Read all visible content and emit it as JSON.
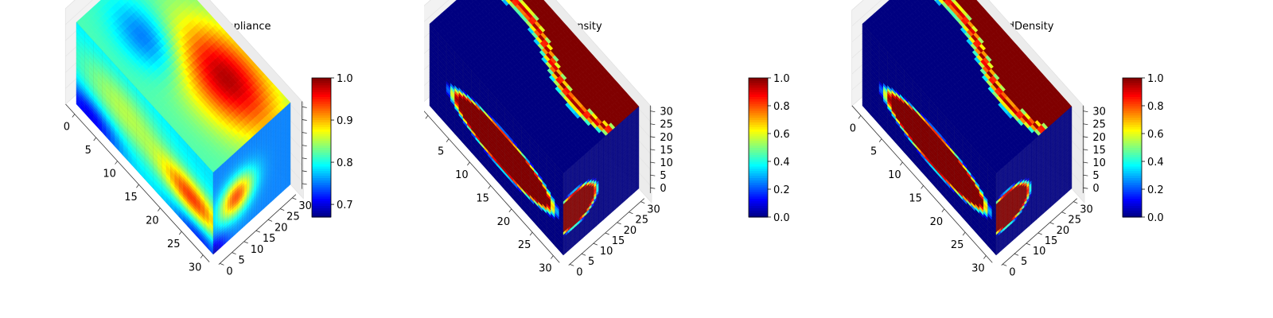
{
  "chart_data": [
    {
      "type": "heatmap",
      "title": "InitialCompliance",
      "xlim": [
        0,
        32
      ],
      "ylim": [
        0,
        32
      ],
      "zlim": [
        0,
        32
      ],
      "x_ticks": [
        "0",
        "5",
        "10",
        "15",
        "20",
        "25",
        "30"
      ],
      "y_ticks": [
        "0",
        "5",
        "10",
        "15",
        "20",
        "25",
        "30"
      ],
      "z_ticks": [],
      "colormap": "jet",
      "colorbar_range": [
        0.67,
        1.0
      ],
      "colorbar_ticks": [
        "0.7",
        "0.8",
        "0.9",
        "1.0"
      ],
      "colorbar_tick_values": [
        0.7,
        0.8,
        0.9,
        1.0
      ]
    },
    {
      "type": "heatmap",
      "title": "TargetDensity",
      "xlim": [
        0,
        32
      ],
      "ylim": [
        0,
        32
      ],
      "zlim": [
        0,
        32
      ],
      "x_ticks": [
        "0",
        "5",
        "10",
        "15",
        "20",
        "25",
        "30"
      ],
      "y_ticks": [
        "0",
        "5",
        "10",
        "15",
        "20",
        "25",
        "30"
      ],
      "z_ticks": [
        "0",
        "5",
        "10",
        "15",
        "20",
        "25",
        "30"
      ],
      "colormap": "jet",
      "colorbar_range": [
        0.0,
        1.0
      ],
      "colorbar_ticks": [
        "0.0",
        "0.2",
        "0.4",
        "0.6",
        "0.8",
        "1.0"
      ],
      "colorbar_tick_values": [
        0.0,
        0.2,
        0.4,
        0.6,
        0.8,
        1.0
      ]
    },
    {
      "type": "heatmap",
      "title": "PredictedDensity",
      "xlim": [
        0,
        32
      ],
      "ylim": [
        0,
        32
      ],
      "zlim": [
        0,
        32
      ],
      "x_ticks": [
        "0",
        "5",
        "10",
        "15",
        "20",
        "25",
        "30"
      ],
      "y_ticks": [
        "0",
        "5",
        "10",
        "15",
        "20",
        "25",
        "30"
      ],
      "z_ticks": [
        "0",
        "5",
        "10",
        "15",
        "20",
        "25",
        "30"
      ],
      "colormap": "jet",
      "colorbar_range": [
        0.0,
        1.0
      ],
      "colorbar_ticks": [
        "0.0",
        "0.2",
        "0.4",
        "0.6",
        "0.8",
        "1.0"
      ],
      "colorbar_tick_values": [
        0.0,
        0.2,
        0.4,
        0.6,
        0.8,
        1.0
      ]
    }
  ]
}
